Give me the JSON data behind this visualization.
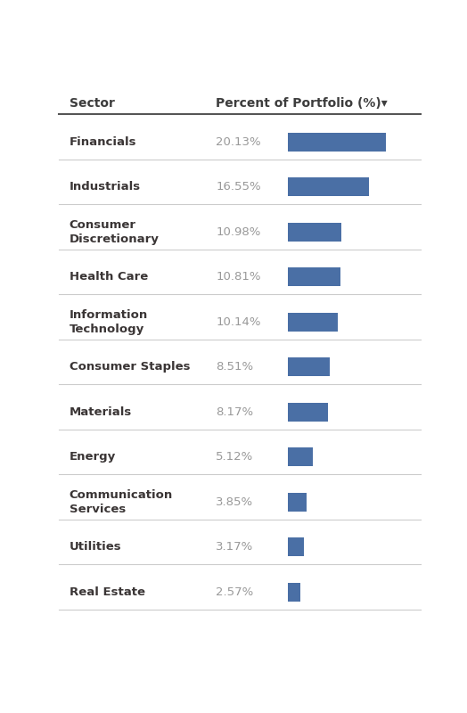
{
  "sectors": [
    {
      "name": "Financials",
      "value": 20.13,
      "label": "20.13%"
    },
    {
      "name": "Industrials",
      "value": 16.55,
      "label": "16.55%"
    },
    {
      "name": "Consumer\nDiscretionary",
      "value": 10.98,
      "label": "10.98%"
    },
    {
      "name": "Health Care",
      "value": 10.81,
      "label": "10.81%"
    },
    {
      "name": "Information\nTechnology",
      "value": 10.14,
      "label": "10.14%"
    },
    {
      "name": "Consumer Staples",
      "value": 8.51,
      "label": "8.51%"
    },
    {
      "name": "Materials",
      "value": 8.17,
      "label": "8.17%"
    },
    {
      "name": "Energy",
      "value": 5.12,
      "label": "5.12%"
    },
    {
      "name": "Communication\nServices",
      "value": 3.85,
      "label": "3.85%"
    },
    {
      "name": "Utilities",
      "value": 3.17,
      "label": "3.17%"
    },
    {
      "name": "Real Estate",
      "value": 2.57,
      "label": "2.57%"
    }
  ],
  "col1_header": "Sector",
  "col2_header": "Percent of Portfolio (%)▾",
  "bar_color": "#4a6fa5",
  "header_text_color": "#3d3d3d",
  "sector_text_color": "#3a3535",
  "value_text_color": "#999999",
  "header_line_color": "#555555",
  "divider_color": "#cccccc",
  "bg_color": "#ffffff",
  "max_bar_value": 20.13
}
